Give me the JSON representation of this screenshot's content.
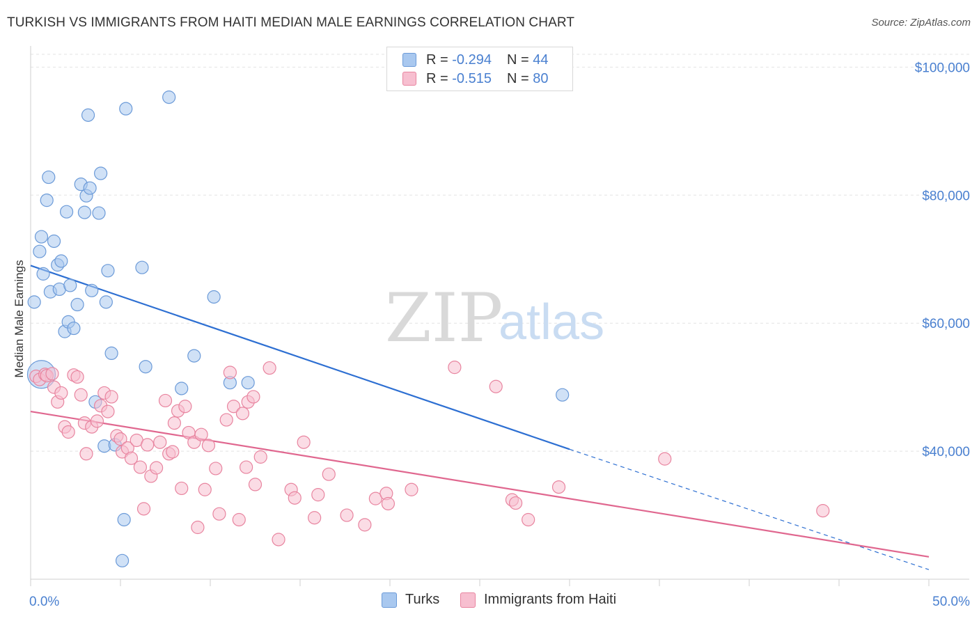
{
  "header": {
    "title": "TURKISH VS IMMIGRANTS FROM HAITI MEDIAN MALE EARNINGS CORRELATION CHART",
    "source": "Source: ZipAtlas.com"
  },
  "watermark": {
    "zip": "ZIP",
    "atlas": "atlas"
  },
  "legend": {
    "rows": [
      {
        "r_label": "R =",
        "r_value": "-0.294",
        "n_label": "N =",
        "n_value": "44",
        "color": "#a9c8ef",
        "border": "#6b9ad8"
      },
      {
        "r_label": "R =",
        "r_value": "-0.515",
        "n_label": "N =",
        "n_value": "80",
        "color": "#f7bfd0",
        "border": "#e8849f"
      }
    ]
  },
  "bottom_legend": [
    {
      "label": "Turks",
      "color": "#a9c8ef",
      "border": "#6b9ad8"
    },
    {
      "label": "Immigrants from Haiti",
      "color": "#f7bfd0",
      "border": "#e8849f"
    }
  ],
  "chart_data": {
    "type": "scatter",
    "title": "TURKISH VS IMMIGRANTS FROM HAITI MEDIAN MALE EARNINGS CORRELATION CHART",
    "xlabel": "",
    "ylabel": "Median Male Earnings",
    "xlim": [
      0,
      50
    ],
    "ylim": [
      20000,
      102000
    ],
    "x_ticks": [
      0,
      50
    ],
    "x_tick_labels": [
      "0.0%",
      "50.0%"
    ],
    "y_ticks": [
      40000,
      60000,
      80000,
      100000
    ],
    "y_tick_labels": [
      "$40,000",
      "$60,000",
      "$80,000",
      "$100,000"
    ],
    "grid": true,
    "series": [
      {
        "name": "Turks",
        "color": "#a9c8ef",
        "stroke": "#6b9ad8",
        "line_color": "#2d6fd2",
        "trend": {
          "x0": 0,
          "y0": 69000,
          "x1": 30,
          "y1": 40300,
          "dash_to_x": 50,
          "dash_to_y": 21500
        },
        "points": [
          [
            0.2,
            63300
          ],
          [
            0.6,
            52000
          ],
          [
            0.5,
            71200
          ],
          [
            0.6,
            73500
          ],
          [
            0.7,
            67700
          ],
          [
            0.9,
            79200
          ],
          [
            1.0,
            82800
          ],
          [
            1.1,
            64900
          ],
          [
            1.3,
            72800
          ],
          [
            1.5,
            69100
          ],
          [
            1.6,
            65300
          ],
          [
            1.7,
            69700
          ],
          [
            1.9,
            58700
          ],
          [
            2.0,
            77400
          ],
          [
            2.1,
            60200
          ],
          [
            2.2,
            65900
          ],
          [
            2.4,
            59200
          ],
          [
            2.6,
            62900
          ],
          [
            2.8,
            81700
          ],
          [
            3.0,
            77300
          ],
          [
            3.1,
            79900
          ],
          [
            3.2,
            92500
          ],
          [
            3.3,
            81100
          ],
          [
            3.4,
            65100
          ],
          [
            3.6,
            47700
          ],
          [
            3.8,
            77200
          ],
          [
            3.9,
            83400
          ],
          [
            4.1,
            40800
          ],
          [
            4.2,
            63300
          ],
          [
            4.3,
            68200
          ],
          [
            4.5,
            55300
          ],
          [
            4.7,
            41000
          ],
          [
            5.1,
            22900
          ],
          [
            5.2,
            29300
          ],
          [
            5.3,
            93500
          ],
          [
            6.2,
            68700
          ],
          [
            6.4,
            53200
          ],
          [
            7.7,
            95300
          ],
          [
            8.4,
            49800
          ],
          [
            9.1,
            54900
          ],
          [
            10.2,
            64100
          ],
          [
            11.1,
            50700
          ],
          [
            12.1,
            50700
          ],
          [
            29.6,
            48800
          ]
        ]
      },
      {
        "name": "Immigrants from Haiti",
        "color": "#f7bfd0",
        "stroke": "#e8849f",
        "line_color": "#e0678f",
        "trend": {
          "x0": 0,
          "y0": 46200,
          "x1": 50,
          "y1": 23500
        },
        "points": [
          [
            0.3,
            51700
          ],
          [
            0.5,
            51200
          ],
          [
            0.8,
            52000
          ],
          [
            0.9,
            51800
          ],
          [
            1.2,
            52100
          ],
          [
            1.3,
            50000
          ],
          [
            1.5,
            47700
          ],
          [
            1.7,
            49100
          ],
          [
            1.9,
            43800
          ],
          [
            2.1,
            43000
          ],
          [
            2.4,
            51900
          ],
          [
            2.6,
            51600
          ],
          [
            2.8,
            48800
          ],
          [
            3.0,
            44400
          ],
          [
            3.1,
            39600
          ],
          [
            3.4,
            43800
          ],
          [
            3.7,
            44700
          ],
          [
            3.9,
            47100
          ],
          [
            4.1,
            49100
          ],
          [
            4.3,
            46200
          ],
          [
            4.5,
            48500
          ],
          [
            4.8,
            42400
          ],
          [
            5.0,
            41900
          ],
          [
            5.1,
            39900
          ],
          [
            5.4,
            40500
          ],
          [
            5.6,
            38900
          ],
          [
            5.9,
            41700
          ],
          [
            6.1,
            37500
          ],
          [
            6.3,
            31000
          ],
          [
            6.5,
            41000
          ],
          [
            6.7,
            36100
          ],
          [
            7.0,
            37400
          ],
          [
            7.2,
            41400
          ],
          [
            7.5,
            47900
          ],
          [
            7.7,
            39600
          ],
          [
            7.9,
            39900
          ],
          [
            8.0,
            44400
          ],
          [
            8.2,
            46300
          ],
          [
            8.4,
            34200
          ],
          [
            8.6,
            47000
          ],
          [
            8.8,
            42900
          ],
          [
            9.1,
            41400
          ],
          [
            9.3,
            28100
          ],
          [
            9.5,
            42600
          ],
          [
            9.7,
            34000
          ],
          [
            9.9,
            40900
          ],
          [
            10.3,
            37300
          ],
          [
            10.5,
            30200
          ],
          [
            10.9,
            44900
          ],
          [
            11.1,
            52300
          ],
          [
            11.3,
            47000
          ],
          [
            11.6,
            29300
          ],
          [
            11.8,
            45900
          ],
          [
            12.0,
            37500
          ],
          [
            12.1,
            47700
          ],
          [
            12.4,
            48500
          ],
          [
            12.5,
            34800
          ],
          [
            12.8,
            39100
          ],
          [
            13.3,
            53000
          ],
          [
            13.8,
            26200
          ],
          [
            14.5,
            34000
          ],
          [
            14.7,
            32700
          ],
          [
            15.2,
            41400
          ],
          [
            15.8,
            29600
          ],
          [
            16.0,
            33200
          ],
          [
            16.6,
            36400
          ],
          [
            17.6,
            30000
          ],
          [
            18.6,
            28500
          ],
          [
            19.2,
            32600
          ],
          [
            19.8,
            33400
          ],
          [
            19.9,
            31800
          ],
          [
            21.2,
            34000
          ],
          [
            23.6,
            53100
          ],
          [
            25.9,
            50100
          ],
          [
            26.8,
            32400
          ],
          [
            27.0,
            31900
          ],
          [
            27.7,
            29300
          ],
          [
            29.4,
            34400
          ],
          [
            35.3,
            38800
          ],
          [
            44.1,
            30700
          ]
        ]
      }
    ]
  }
}
